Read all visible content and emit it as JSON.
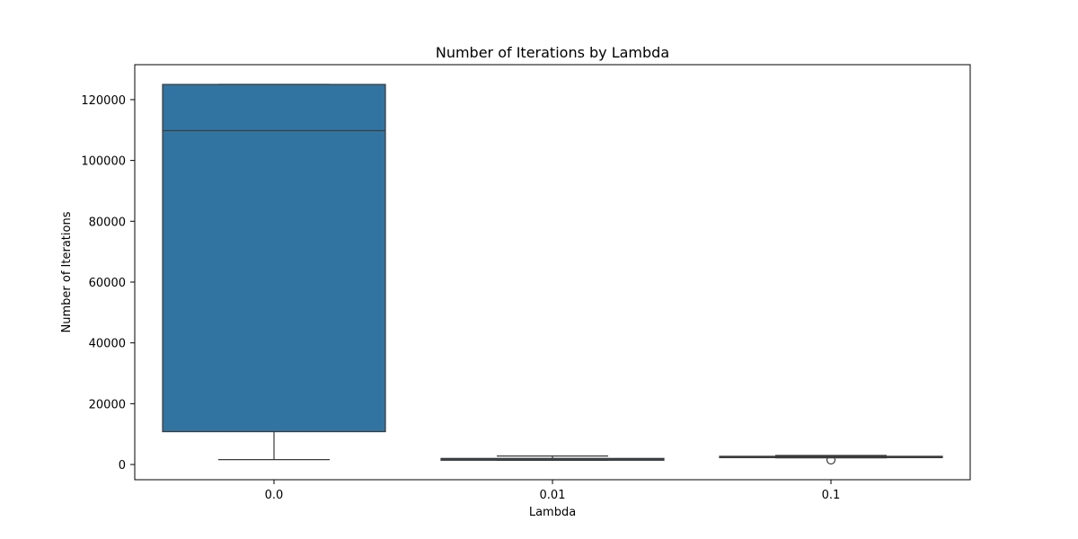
{
  "chart_data": {
    "type": "box",
    "title": "Number of Iterations by Lambda",
    "xlabel": "Lambda",
    "ylabel": "Number of Iterations",
    "categories": [
      "0.0",
      "0.01",
      "0.1"
    ],
    "ylim": [
      -5000,
      131500
    ],
    "yticks": [
      0,
      20000,
      40000,
      60000,
      80000,
      100000,
      120000
    ],
    "ytick_labels": [
      "0",
      "20000",
      "40000",
      "60000",
      "80000",
      "100000",
      "120000"
    ],
    "grid": false,
    "legend": "none",
    "boxes": [
      {
        "category": "0.0",
        "whisker_low": 1600,
        "q1": 10800,
        "median": 109800,
        "q3": 125000,
        "whisker_high": 125000,
        "outliers": []
      },
      {
        "category": "0.01",
        "whisker_low": 1400,
        "q1": 1400,
        "median": 1800,
        "q3": 2000,
        "whisker_high": 2800,
        "outliers": []
      },
      {
        "category": "0.1",
        "whisker_low": 2200,
        "q1": 2300,
        "median": 2500,
        "q3": 2700,
        "whisker_high": 3000,
        "outliers": [
          1500
        ]
      }
    ],
    "colors": {
      "box_fill": "#3274a1",
      "line": "#3a3a3a",
      "axis": "#000000",
      "background": "#ffffff"
    }
  }
}
